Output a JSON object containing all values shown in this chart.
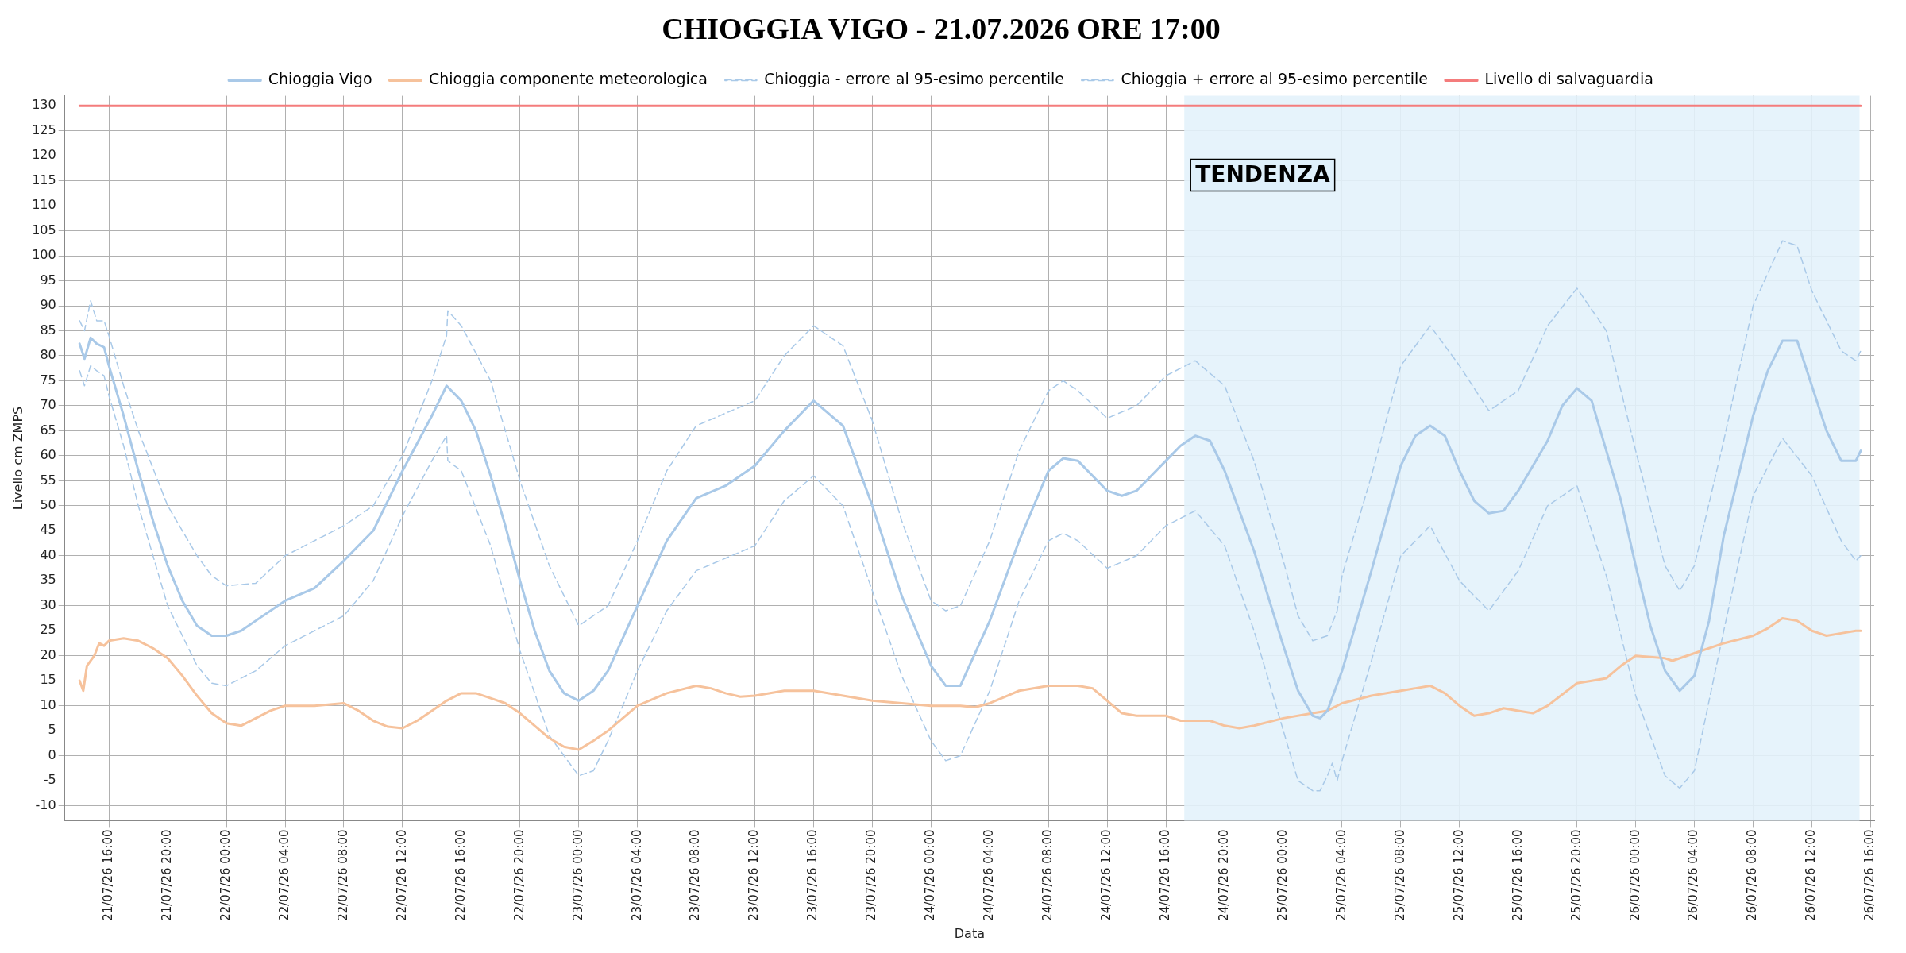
{
  "chart_data": {
    "type": "line",
    "title": "CHIOGGIA VIGO - 21.07.2026 ORE 17:00",
    "xlabel": "Data",
    "ylabel": "Livello cm ZMPS",
    "xlim": [
      "2026-07-21T13:00",
      "2026-07-26T16:15"
    ],
    "xticks": [
      {
        "value": "2026-07-21T16:00",
        "label": "21/07/26 16:00"
      },
      {
        "value": "2026-07-21T20:00",
        "label": "21/07/26 20:00"
      },
      {
        "value": "2026-07-22T00:00",
        "label": "22/07/26 00:00"
      },
      {
        "value": "2026-07-22T04:00",
        "label": "22/07/26 04:00"
      },
      {
        "value": "2026-07-22T08:00",
        "label": "22/07/26 08:00"
      },
      {
        "value": "2026-07-22T12:00",
        "label": "22/07/26 12:00"
      },
      {
        "value": "2026-07-22T16:00",
        "label": "22/07/26 16:00"
      },
      {
        "value": "2026-07-22T20:00",
        "label": "22/07/26 20:00"
      },
      {
        "value": "2026-07-23T00:00",
        "label": "23/07/26 00:00"
      },
      {
        "value": "2026-07-23T04:00",
        "label": "23/07/26 04:00"
      },
      {
        "value": "2026-07-23T08:00",
        "label": "23/07/26 08:00"
      },
      {
        "value": "2026-07-23T12:00",
        "label": "23/07/26 12:00"
      },
      {
        "value": "2026-07-23T16:00",
        "label": "23/07/26 16:00"
      },
      {
        "value": "2026-07-23T20:00",
        "label": "23/07/26 20:00"
      },
      {
        "value": "2026-07-24T00:00",
        "label": "24/07/26 00:00"
      },
      {
        "value": "2026-07-24T04:00",
        "label": "24/07/26 04:00"
      },
      {
        "value": "2026-07-24T08:00",
        "label": "24/07/26 08:00"
      },
      {
        "value": "2026-07-24T12:00",
        "label": "24/07/26 12:00"
      },
      {
        "value": "2026-07-24T16:00",
        "label": "24/07/26 16:00"
      },
      {
        "value": "2026-07-24T20:00",
        "label": "24/07/26 20:00"
      },
      {
        "value": "2026-07-25T00:00",
        "label": "25/07/26 00:00"
      },
      {
        "value": "2026-07-25T04:00",
        "label": "25/07/26 04:00"
      },
      {
        "value": "2026-07-25T08:00",
        "label": "25/07/26 08:00"
      },
      {
        "value": "2026-07-25T12:00",
        "label": "25/07/26 12:00"
      },
      {
        "value": "2026-07-25T16:00",
        "label": "25/07/26 16:00"
      },
      {
        "value": "2026-07-25T20:00",
        "label": "25/07/26 20:00"
      },
      {
        "value": "2026-07-26T00:00",
        "label": "26/07/26 00:00"
      },
      {
        "value": "2026-07-26T04:00",
        "label": "26/07/26 04:00"
      },
      {
        "value": "2026-07-26T08:00",
        "label": "26/07/26 08:00"
      },
      {
        "value": "2026-07-26T12:00",
        "label": "26/07/26 12:00"
      },
      {
        "value": "2026-07-26T16:00",
        "label": "26/07/26 16:00"
      }
    ],
    "ylim": [
      -13,
      132
    ],
    "yticks": [
      -10,
      -5,
      0,
      5,
      10,
      15,
      20,
      25,
      30,
      35,
      40,
      45,
      50,
      55,
      60,
      65,
      70,
      75,
      80,
      85,
      90,
      95,
      100,
      105,
      110,
      115,
      120,
      125,
      130
    ],
    "grid": true,
    "legend": "top",
    "marker": "none",
    "bands": [
      {
        "axis": "x",
        "from": "2026-07-24T17:15",
        "to": "2026-07-26T15:15",
        "label": "TENDENZA",
        "color": "#e3f2fb"
      }
    ],
    "series": [
      {
        "name": "Chioggia Vigo",
        "color": "#a9c9e8",
        "line_style": "solid",
        "x": [
          "2026-07-21T14:00",
          "2026-07-21T14:20",
          "2026-07-21T14:45",
          "2026-07-21T15:10",
          "2026-07-21T15:40",
          "2026-07-21T16:00",
          "2026-07-21T17:00",
          "2026-07-21T18:00",
          "2026-07-21T19:00",
          "2026-07-21T20:00",
          "2026-07-21T21:00",
          "2026-07-21T22:00",
          "2026-07-21T23:00",
          "2026-07-22T00:00",
          "2026-07-22T01:00",
          "2026-07-22T02:00",
          "2026-07-22T04:00",
          "2026-07-22T06:00",
          "2026-07-22T08:00",
          "2026-07-22T10:00",
          "2026-07-22T12:00",
          "2026-07-22T14:00",
          "2026-07-22T15:00",
          "2026-07-22T16:00",
          "2026-07-22T17:00",
          "2026-07-22T18:00",
          "2026-07-22T19:00",
          "2026-07-22T20:00",
          "2026-07-22T21:00",
          "2026-07-22T22:00",
          "2026-07-22T23:00",
          "2026-07-23T00:00",
          "2026-07-23T01:00",
          "2026-07-23T02:00",
          "2026-07-23T04:00",
          "2026-07-23T06:00",
          "2026-07-23T08:00",
          "2026-07-23T10:00",
          "2026-07-23T12:00",
          "2026-07-23T14:00",
          "2026-07-23T16:00",
          "2026-07-23T18:00",
          "2026-07-23T20:00",
          "2026-07-23T22:00",
          "2026-07-24T00:00",
          "2026-07-24T01:00",
          "2026-07-24T02:00",
          "2026-07-24T04:00",
          "2026-07-24T06:00",
          "2026-07-24T08:00",
          "2026-07-24T09:00",
          "2026-07-24T10:00",
          "2026-07-24T12:00",
          "2026-07-24T13:00",
          "2026-07-24T14:00",
          "2026-07-24T16:00",
          "2026-07-24T17:00",
          "2026-07-24T18:00",
          "2026-07-24T19:00",
          "2026-07-24T20:00",
          "2026-07-24T22:00",
          "2026-07-25T00:00",
          "2026-07-25T01:00",
          "2026-07-25T02:00",
          "2026-07-25T02:30",
          "2026-07-25T03:00",
          "2026-07-25T04:00",
          "2026-07-25T06:00",
          "2026-07-25T08:00",
          "2026-07-25T09:00",
          "2026-07-25T10:00",
          "2026-07-25T11:00",
          "2026-07-25T12:00",
          "2026-07-25T13:00",
          "2026-07-25T14:00",
          "2026-07-25T15:00",
          "2026-07-25T16:00",
          "2026-07-25T18:00",
          "2026-07-25T19:00",
          "2026-07-25T20:00",
          "2026-07-25T21:00",
          "2026-07-25T22:00",
          "2026-07-25T23:00",
          "2026-07-26T00:00",
          "2026-07-26T01:00",
          "2026-07-26T02:00",
          "2026-07-26T03:00",
          "2026-07-26T04:00",
          "2026-07-26T05:00",
          "2026-07-26T06:00",
          "2026-07-26T08:00",
          "2026-07-26T09:00",
          "2026-07-26T10:00",
          "2026-07-26T11:00",
          "2026-07-26T12:00",
          "2026-07-26T13:00",
          "2026-07-26T14:00",
          "2026-07-26T15:00",
          "2026-07-26T15:20"
        ],
        "values": [
          82.4,
          79.4,
          83.6,
          82.4,
          81.7,
          78,
          68,
          57,
          47,
          38,
          31,
          26,
          24,
          24,
          25,
          27,
          31,
          33.5,
          39,
          45,
          57,
          68,
          74,
          71,
          65,
          56,
          46,
          35,
          25,
          17,
          12.5,
          11,
          13,
          17,
          30,
          43,
          51.5,
          54,
          58,
          65,
          71,
          66,
          50,
          32,
          18,
          14,
          14,
          27,
          43,
          57,
          59.5,
          59,
          53,
          52,
          53,
          59,
          62,
          64,
          63,
          57,
          41,
          22,
          13,
          8,
          7.5,
          9,
          17,
          37,
          58,
          64,
          66,
          64,
          57,
          51,
          48.5,
          49,
          53,
          63,
          70,
          73.5,
          71,
          61,
          51,
          38,
          26,
          17,
          13,
          16,
          27,
          44,
          68,
          77,
          83,
          83,
          74,
          65,
          59,
          59,
          61
        ]
      },
      {
        "name": "Chioggia componente meteorologica",
        "color": "#f6c29c",
        "line_style": "solid",
        "x": [
          "2026-07-21T14:00",
          "2026-07-21T14:15",
          "2026-07-21T14:30",
          "2026-07-21T15:00",
          "2026-07-21T15:20",
          "2026-07-21T15:40",
          "2026-07-21T16:00",
          "2026-07-21T17:00",
          "2026-07-21T18:00",
          "2026-07-21T19:00",
          "2026-07-21T20:00",
          "2026-07-21T21:00",
          "2026-07-21T22:00",
          "2026-07-21T23:00",
          "2026-07-22T00:00",
          "2026-07-22T01:00",
          "2026-07-22T02:00",
          "2026-07-22T03:00",
          "2026-07-22T04:00",
          "2026-07-22T06:00",
          "2026-07-22T08:00",
          "2026-07-22T09:00",
          "2026-07-22T10:00",
          "2026-07-22T11:00",
          "2026-07-22T12:00",
          "2026-07-22T13:00",
          "2026-07-22T14:00",
          "2026-07-22T15:00",
          "2026-07-22T16:00",
          "2026-07-22T17:00",
          "2026-07-22T18:00",
          "2026-07-22T19:00",
          "2026-07-22T20:00",
          "2026-07-22T21:00",
          "2026-07-22T22:00",
          "2026-07-22T23:00",
          "2026-07-23T00:00",
          "2026-07-23T01:00",
          "2026-07-23T02:00",
          "2026-07-23T04:00",
          "2026-07-23T06:00",
          "2026-07-23T08:00",
          "2026-07-23T09:00",
          "2026-07-23T10:00",
          "2026-07-23T11:00",
          "2026-07-23T12:00",
          "2026-07-23T14:00",
          "2026-07-23T16:00",
          "2026-07-23T18:00",
          "2026-07-23T20:00",
          "2026-07-23T22:00",
          "2026-07-24T00:00",
          "2026-07-24T02:00",
          "2026-07-24T03:00",
          "2026-07-24T04:00",
          "2026-07-24T06:00",
          "2026-07-24T08:00",
          "2026-07-24T10:00",
          "2026-07-24T11:00",
          "2026-07-24T12:00",
          "2026-07-24T13:00",
          "2026-07-24T14:00",
          "2026-07-24T16:00",
          "2026-07-24T17:00",
          "2026-07-24T18:00",
          "2026-07-24T19:00",
          "2026-07-24T20:00",
          "2026-07-24T21:00",
          "2026-07-24T22:00",
          "2026-07-25T00:00",
          "2026-07-25T02:00",
          "2026-07-25T03:00",
          "2026-07-25T04:00",
          "2026-07-25T06:00",
          "2026-07-25T08:00",
          "2026-07-25T09:00",
          "2026-07-25T10:00",
          "2026-07-25T11:00",
          "2026-07-25T12:00",
          "2026-07-25T13:00",
          "2026-07-25T14:00",
          "2026-07-25T15:00",
          "2026-07-25T16:00",
          "2026-07-25T17:00",
          "2026-07-25T18:00",
          "2026-07-25T20:00",
          "2026-07-25T21:00",
          "2026-07-25T22:00",
          "2026-07-25T23:00",
          "2026-07-26T00:00",
          "2026-07-26T02:00",
          "2026-07-26T02:30",
          "2026-07-26T04:00",
          "2026-07-26T06:00",
          "2026-07-26T08:00",
          "2026-07-26T09:00",
          "2026-07-26T10:00",
          "2026-07-26T11:00",
          "2026-07-26T12:00",
          "2026-07-26T13:00",
          "2026-07-26T14:00",
          "2026-07-26T15:00",
          "2026-07-26T15:20"
        ],
        "values": [
          15,
          13,
          18,
          20,
          22.5,
          22,
          23,
          23.5,
          23,
          21.5,
          19.5,
          16,
          12,
          8.5,
          6.5,
          6,
          7.5,
          9,
          10,
          10,
          10.5,
          9,
          7,
          5.8,
          5.5,
          7,
          9,
          11,
          12.5,
          12.5,
          11.5,
          10.5,
          8.5,
          6,
          3.5,
          1.8,
          1.2,
          3,
          5,
          10,
          12.5,
          14,
          13.5,
          12.5,
          11.8,
          12,
          13,
          13,
          12,
          11,
          10.5,
          10,
          10,
          9.7,
          10.5,
          13,
          14,
          14,
          13.5,
          11,
          8.5,
          8,
          8,
          7,
          7,
          7,
          6,
          5.5,
          6,
          7.5,
          8.5,
          9,
          10.5,
          12,
          13,
          13.5,
          14,
          12.5,
          10,
          8,
          8.5,
          9.5,
          9,
          8.5,
          10,
          14.5,
          15,
          15.5,
          18,
          20,
          19.5,
          19,
          20.5,
          22.5,
          24,
          25.5,
          27.5,
          27,
          25,
          24,
          24.5,
          25,
          25
        ]
      },
      {
        "name": "Chioggia - errore al 95-esimo percentile",
        "color": "#a9c9e8",
        "line_style": "dashed",
        "x": [
          "2026-07-21T14:00",
          "2026-07-21T14:20",
          "2026-07-21T14:45",
          "2026-07-21T15:10",
          "2026-07-21T15:40",
          "2026-07-21T16:00",
          "2026-07-21T17:00",
          "2026-07-21T18:00",
          "2026-07-21T20:00",
          "2026-07-21T22:00",
          "2026-07-21T23:00",
          "2026-07-22T00:00",
          "2026-07-22T02:00",
          "2026-07-22T04:00",
          "2026-07-22T08:00",
          "2026-07-22T10:00",
          "2026-07-22T12:00",
          "2026-07-22T14:00",
          "2026-07-22T15:00",
          "2026-07-22T15:05",
          "2026-07-22T16:00",
          "2026-07-22T18:00",
          "2026-07-22T20:00",
          "2026-07-22T22:00",
          "2026-07-23T00:00",
          "2026-07-23T01:00",
          "2026-07-23T02:00",
          "2026-07-23T04:00",
          "2026-07-23T06:00",
          "2026-07-23T08:00",
          "2026-07-23T12:00",
          "2026-07-23T14:00",
          "2026-07-23T16:00",
          "2026-07-23T18:00",
          "2026-07-23T20:00",
          "2026-07-23T22:00",
          "2026-07-24T00:00",
          "2026-07-24T01:00",
          "2026-07-24T02:00",
          "2026-07-24T04:00",
          "2026-07-24T06:00",
          "2026-07-24T08:00",
          "2026-07-24T09:00",
          "2026-07-24T10:00",
          "2026-07-24T12:00",
          "2026-07-24T14:00",
          "2026-07-24T16:00",
          "2026-07-24T18:00",
          "2026-07-24T20:00",
          "2026-07-24T22:00",
          "2026-07-25T00:00",
          "2026-07-25T01:00",
          "2026-07-25T02:00",
          "2026-07-25T02:30",
          "2026-07-25T03:00",
          "2026-07-25T03:20",
          "2026-07-25T03:40",
          "2026-07-25T04:00",
          "2026-07-25T06:00",
          "2026-07-25T08:00",
          "2026-07-25T10:00",
          "2026-07-25T12:00",
          "2026-07-25T14:00",
          "2026-07-25T16:00",
          "2026-07-25T18:00",
          "2026-07-25T20:00",
          "2026-07-25T22:00",
          "2026-07-26T00:00",
          "2026-07-26T02:00",
          "2026-07-26T03:00",
          "2026-07-26T04:00",
          "2026-07-26T06:00",
          "2026-07-26T08:00",
          "2026-07-26T10:00",
          "2026-07-26T12:00",
          "2026-07-26T14:00",
          "2026-07-26T15:00",
          "2026-07-26T15:20"
        ],
        "values": [
          77,
          74,
          78,
          77,
          76,
          72,
          62,
          50,
          30,
          18,
          14.5,
          14,
          17,
          22,
          28,
          35,
          48,
          59,
          64,
          59,
          57,
          42,
          21,
          4,
          -4,
          -3,
          3,
          17,
          29,
          37,
          42,
          51,
          56,
          50,
          33,
          16,
          3,
          -1,
          0,
          13,
          31,
          43,
          44.5,
          43,
          37.5,
          40,
          46,
          49,
          42,
          25,
          5,
          -5,
          -7,
          -7,
          -4,
          -1.5,
          -5,
          -1,
          19,
          40,
          46,
          35,
          29,
          37,
          50,
          54,
          36,
          12,
          -4,
          -6.5,
          -3,
          25,
          52,
          63.5,
          56,
          43,
          39,
          40
        ]
      },
      {
        "name": "Chioggia + errore al 95-esimo percentile",
        "color": "#a9c9e8",
        "line_style": "dashed",
        "x": [
          "2026-07-21T14:00",
          "2026-07-21T14:20",
          "2026-07-21T14:45",
          "2026-07-21T15:10",
          "2026-07-21T15:40",
          "2026-07-21T16:00",
          "2026-07-21T17:00",
          "2026-07-21T18:00",
          "2026-07-21T20:00",
          "2026-07-21T22:00",
          "2026-07-21T23:00",
          "2026-07-22T00:00",
          "2026-07-22T02:00",
          "2026-07-22T04:00",
          "2026-07-22T08:00",
          "2026-07-22T10:00",
          "2026-07-22T12:00",
          "2026-07-22T14:00",
          "2026-07-22T15:00",
          "2026-07-22T15:05",
          "2026-07-22T16:00",
          "2026-07-22T18:00",
          "2026-07-22T20:00",
          "2026-07-22T22:00",
          "2026-07-23T00:00",
          "2026-07-23T02:00",
          "2026-07-23T04:00",
          "2026-07-23T06:00",
          "2026-07-23T08:00",
          "2026-07-23T12:00",
          "2026-07-23T14:00",
          "2026-07-23T16:00",
          "2026-07-23T18:00",
          "2026-07-23T20:00",
          "2026-07-23T22:00",
          "2026-07-24T00:00",
          "2026-07-24T01:00",
          "2026-07-24T02:00",
          "2026-07-24T04:00",
          "2026-07-24T06:00",
          "2026-07-24T08:00",
          "2026-07-24T09:00",
          "2026-07-24T10:00",
          "2026-07-24T12:00",
          "2026-07-24T14:00",
          "2026-07-24T16:00",
          "2026-07-24T18:00",
          "2026-07-24T20:00",
          "2026-07-24T22:00",
          "2026-07-25T00:00",
          "2026-07-25T01:00",
          "2026-07-25T02:00",
          "2026-07-25T03:00",
          "2026-07-25T03:40",
          "2026-07-25T04:00",
          "2026-07-25T06:00",
          "2026-07-25T08:00",
          "2026-07-25T10:00",
          "2026-07-25T12:00",
          "2026-07-25T14:00",
          "2026-07-25T16:00",
          "2026-07-25T18:00",
          "2026-07-25T20:00",
          "2026-07-25T22:00",
          "2026-07-26T00:00",
          "2026-07-26T02:00",
          "2026-07-26T03:00",
          "2026-07-26T04:00",
          "2026-07-26T06:00",
          "2026-07-26T08:00",
          "2026-07-26T10:00",
          "2026-07-26T11:00",
          "2026-07-26T12:00",
          "2026-07-26T14:00",
          "2026-07-26T15:00",
          "2026-07-26T15:20"
        ],
        "values": [
          87,
          85,
          91,
          87,
          87,
          84,
          74,
          65,
          50,
          40,
          36,
          34,
          34.5,
          40,
          46,
          50,
          60,
          75,
          84,
          89,
          86,
          75,
          55,
          38,
          26,
          30,
          43,
          57,
          66,
          71,
          80,
          86,
          82,
          67,
          47,
          31,
          29,
          30,
          43,
          61,
          73,
          75,
          73,
          67.5,
          70,
          76,
          79,
          74,
          59,
          39,
          28,
          23,
          24,
          29,
          36,
          56,
          78,
          86,
          78,
          69,
          73,
          86,
          93.5,
          85,
          61,
          38,
          33,
          38,
          63,
          90,
          103,
          102,
          93,
          81,
          79,
          81
        ]
      },
      {
        "name": "Livello di salvaguardia",
        "color": "#f47c7c",
        "line_style": "solid",
        "x": [
          "2026-07-21T14:00",
          "2026-07-26T15:20"
        ],
        "values": [
          130,
          130
        ]
      }
    ]
  }
}
